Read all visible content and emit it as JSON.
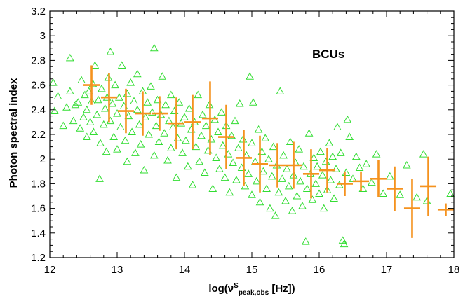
{
  "chart_data": {
    "type": "scatter",
    "xlabel_parts": {
      "prefix": "log(ν",
      "sup": "S",
      "sub": "peak,obs",
      "suffix": " [Hz])"
    },
    "ylabel": "Photon spectral index",
    "annotation": "BCUs",
    "xlim": [
      12,
      18
    ],
    "ylim": [
      1.2,
      3.2
    ],
    "x_ticks": [
      "12",
      "13",
      "14",
      "15",
      "16",
      "17",
      "18"
    ],
    "y_ticks": [
      "1.2",
      "1.4",
      "1.6",
      "1.8",
      "2",
      "2.2",
      "2.4",
      "2.6",
      "2.8",
      "3",
      "3.2"
    ],
    "grid": false,
    "colors": {
      "scatter": "#33dd33",
      "binned": "#f5921e",
      "axis": "#000000"
    },
    "series": [
      {
        "kind": "scatter-triangle",
        "points": [
          [
            12.05,
            2.62
          ],
          [
            12.07,
            2.39
          ],
          [
            12.12,
            2.51
          ],
          [
            12.2,
            2.27
          ],
          [
            12.25,
            2.42
          ],
          [
            12.3,
            2.82
          ],
          [
            12.3,
            2.55
          ],
          [
            12.35,
            2.31
          ],
          [
            12.38,
            2.44
          ],
          [
            12.42,
            2.46
          ],
          [
            12.45,
            2.25
          ],
          [
            12.47,
            2.64
          ],
          [
            12.5,
            2.34
          ],
          [
            12.52,
            2.52
          ],
          [
            12.55,
            2.4
          ],
          [
            12.55,
            2.18
          ],
          [
            12.58,
            2.55
          ],
          [
            12.6,
            2.3
          ],
          [
            12.62,
            2.47
          ],
          [
            12.64,
            2.61
          ],
          [
            12.65,
            2.22
          ],
          [
            12.67,
            2.76
          ],
          [
            12.7,
            2.36
          ],
          [
            12.72,
            2.48
          ],
          [
            12.74,
            1.84
          ],
          [
            12.75,
            2.13
          ],
          [
            12.77,
            2.57
          ],
          [
            12.8,
            2.28
          ],
          [
            12.82,
            2.41
          ],
          [
            12.84,
            2.06
          ],
          [
            12.85,
            2.5
          ],
          [
            12.87,
            2.66
          ],
          [
            12.9,
            2.87
          ],
          [
            12.9,
            2.31
          ],
          [
            12.93,
            2.45
          ],
          [
            12.95,
            2.18
          ],
          [
            12.97,
            2.6
          ],
          [
            13.0,
            2.37
          ],
          [
            13.0,
            2.08
          ],
          [
            13.03,
            2.5
          ],
          [
            13.05,
            2.26
          ],
          [
            13.07,
            2.76
          ],
          [
            13.1,
            2.43
          ],
          [
            13.12,
            2.15
          ],
          [
            13.15,
            2.53
          ],
          [
            13.15,
            1.98
          ],
          [
            13.17,
            2.35
          ],
          [
            13.2,
            2.62
          ],
          [
            13.22,
            2.22
          ],
          [
            13.25,
            2.47
          ],
          [
            13.27,
            2.05
          ],
          [
            13.3,
            2.4
          ],
          [
            13.3,
            2.69
          ],
          [
            13.33,
            2.28
          ],
          [
            13.35,
            2.12
          ],
          [
            13.38,
            2.55
          ],
          [
            13.4,
            1.91
          ],
          [
            13.42,
            2.34
          ],
          [
            13.45,
            2.46
          ],
          [
            13.47,
            2.2
          ],
          [
            13.5,
            2.59
          ],
          [
            13.52,
            2.38
          ],
          [
            13.55,
            2.9
          ],
          [
            13.55,
            2.03
          ],
          [
            13.58,
            2.27
          ],
          [
            13.6,
            2.48
          ],
          [
            13.62,
            2.14
          ],
          [
            13.65,
            2.36
          ],
          [
            13.67,
            2.67
          ],
          [
            13.7,
            2.21
          ],
          [
            13.72,
            2.44
          ],
          [
            13.75,
            1.99
          ],
          [
            13.77,
            2.31
          ],
          [
            13.8,
            2.52
          ],
          [
            13.8,
            2.09
          ],
          [
            13.83,
            2.26
          ],
          [
            13.85,
            2.39
          ],
          [
            13.88,
            1.85
          ],
          [
            13.9,
            2.17
          ],
          [
            13.92,
            2.46
          ],
          [
            13.95,
            2.29
          ],
          [
            13.97,
            2.05
          ],
          [
            14.0,
            2.34
          ],
          [
            14.02,
            2.15
          ],
          [
            14.05,
            1.94
          ],
          [
            14.07,
            2.41
          ],
          [
            14.1,
            2.24
          ],
          [
            14.12,
            1.79
          ],
          [
            14.15,
            2.3
          ],
          [
            14.17,
            2.1
          ],
          [
            14.2,
            2.52
          ],
          [
            14.22,
            1.98
          ],
          [
            14.25,
            2.19
          ],
          [
            14.27,
            2.36
          ],
          [
            14.3,
            1.89
          ],
          [
            14.32,
            2.27
          ],
          [
            14.35,
            2.07
          ],
          [
            14.37,
            2.44
          ],
          [
            14.4,
            2.16
          ],
          [
            14.42,
            1.76
          ],
          [
            14.45,
            2.32
          ],
          [
            14.47,
            2.01
          ],
          [
            14.5,
            2.22
          ],
          [
            14.52,
            1.92
          ],
          [
            14.55,
            2.38
          ],
          [
            14.57,
            2.11
          ],
          [
            14.6,
            1.85
          ],
          [
            14.62,
            2.27
          ],
          [
            14.65,
            2.04
          ],
          [
            14.67,
            1.73
          ],
          [
            14.7,
            2.19
          ],
          [
            14.72,
            1.97
          ],
          [
            14.75,
            2.31
          ],
          [
            14.77,
            1.83
          ],
          [
            14.8,
            2.09
          ],
          [
            14.82,
            2.45
          ],
          [
            14.85,
            1.93
          ],
          [
            14.87,
            2.16
          ],
          [
            14.9,
            1.78
          ],
          [
            14.92,
            2.03
          ],
          [
            14.95,
            1.88
          ],
          [
            14.97,
            2.67
          ],
          [
            15.0,
            2.13
          ],
          [
            15.0,
            1.71
          ],
          [
            15.02,
            2.46
          ],
          [
            15.05,
            1.98
          ],
          [
            15.07,
            1.82
          ],
          [
            15.1,
            2.24
          ],
          [
            15.12,
            1.65
          ],
          [
            15.15,
            2.06
          ],
          [
            15.17,
            1.9
          ],
          [
            15.2,
            2.17
          ],
          [
            15.22,
            1.76
          ],
          [
            15.25,
            2.0
          ],
          [
            15.27,
            1.6
          ],
          [
            15.3,
            1.86
          ],
          [
            15.32,
            2.1
          ],
          [
            15.35,
            1.54
          ],
          [
            15.37,
            1.95
          ],
          [
            15.4,
            1.73
          ],
          [
            15.42,
            2.55
          ],
          [
            15.45,
            1.84
          ],
          [
            15.47,
            2.03
          ],
          [
            15.5,
            1.66
          ],
          [
            15.52,
            1.92
          ],
          [
            15.55,
            1.78
          ],
          [
            15.57,
            2.14
          ],
          [
            15.6,
            1.58
          ],
          [
            15.62,
            1.87
          ],
          [
            15.65,
            1.97
          ],
          [
            15.67,
            1.7
          ],
          [
            15.7,
            2.08
          ],
          [
            15.72,
            1.82
          ],
          [
            15.75,
            1.62
          ],
          [
            15.77,
            1.94
          ],
          [
            15.8,
            1.33
          ],
          [
            15.82,
            1.76
          ],
          [
            15.85,
            2.21
          ],
          [
            15.87,
            1.88
          ],
          [
            15.9,
            1.67
          ],
          [
            15.92,
            2.01
          ],
          [
            15.95,
            1.8
          ],
          [
            15.97,
            1.94
          ],
          [
            16.0,
            1.72
          ],
          [
            16.02,
            2.06
          ],
          [
            16.05,
            1.87
          ],
          [
            16.07,
            1.6
          ],
          [
            16.1,
            1.98
          ],
          [
            16.12,
            1.75
          ],
          [
            16.15,
            2.13
          ],
          [
            16.17,
            1.83
          ],
          [
            16.2,
            2.02
          ],
          [
            16.22,
            1.68
          ],
          [
            16.25,
            1.92
          ],
          [
            16.27,
            2.26
          ],
          [
            16.3,
            1.79
          ],
          [
            16.32,
            2.05
          ],
          [
            16.35,
            1.34
          ],
          [
            16.37,
            1.31
          ],
          [
            16.4,
            1.89
          ],
          [
            16.42,
            2.32
          ],
          [
            16.45,
            2.18
          ],
          [
            16.5,
            1.84
          ],
          [
            16.55,
            2.02
          ],
          [
            16.6,
            1.93
          ],
          [
            16.65,
            1.76
          ],
          [
            16.7,
            1.96
          ],
          [
            16.78,
            1.81
          ],
          [
            16.85,
            2.04
          ],
          [
            16.95,
            1.72
          ],
          [
            17.05,
            1.86
          ],
          [
            17.2,
            1.71
          ],
          [
            17.3,
            1.95
          ],
          [
            17.45,
            1.69
          ],
          [
            17.55,
            2.04
          ],
          [
            17.6,
            1.66
          ],
          [
            17.95,
            1.72
          ]
        ]
      },
      {
        "kind": "binned-crosses",
        "points": [
          {
            "x": 12.62,
            "y": 2.6,
            "xerr": 0.12,
            "yerr": 0.16
          },
          {
            "x": 12.88,
            "y": 2.5,
            "xerr": 0.12,
            "yerr": 0.2
          },
          {
            "x": 13.13,
            "y": 2.39,
            "xerr": 0.12,
            "yerr": 0.18
          },
          {
            "x": 13.38,
            "y": 2.37,
            "xerr": 0.12,
            "yerr": 0.18
          },
          {
            "x": 13.63,
            "y": 2.37,
            "xerr": 0.12,
            "yerr": 0.14
          },
          {
            "x": 13.88,
            "y": 2.29,
            "xerr": 0.12,
            "yerr": 0.21
          },
          {
            "x": 14.12,
            "y": 2.3,
            "xerr": 0.12,
            "yerr": 0.22
          },
          {
            "x": 14.38,
            "y": 2.33,
            "xerr": 0.12,
            "yerr": 0.3
          },
          {
            "x": 14.62,
            "y": 2.18,
            "xerr": 0.12,
            "yerr": 0.26
          },
          {
            "x": 14.88,
            "y": 2.01,
            "xerr": 0.12,
            "yerr": 0.23
          },
          {
            "x": 15.12,
            "y": 1.96,
            "xerr": 0.12,
            "yerr": 0.23
          },
          {
            "x": 15.38,
            "y": 1.95,
            "xerr": 0.12,
            "yerr": 0.18
          },
          {
            "x": 15.62,
            "y": 1.95,
            "xerr": 0.12,
            "yerr": 0.19
          },
          {
            "x": 15.88,
            "y": 1.88,
            "xerr": 0.12,
            "yerr": 0.2
          },
          {
            "x": 16.12,
            "y": 1.91,
            "xerr": 0.12,
            "yerr": 0.18
          },
          {
            "x": 16.38,
            "y": 1.8,
            "xerr": 0.12,
            "yerr": 0.1
          },
          {
            "x": 16.62,
            "y": 1.82,
            "xerr": 0.12,
            "yerr": 0.08
          },
          {
            "x": 16.88,
            "y": 1.84,
            "xerr": 0.12,
            "yerr": 0.15
          },
          {
            "x": 17.12,
            "y": 1.76,
            "xerr": 0.12,
            "yerr": 0.18
          },
          {
            "x": 17.38,
            "y": 1.6,
            "xerr": 0.12,
            "yerr": 0.24
          },
          {
            "x": 17.62,
            "y": 1.78,
            "xerr": 0.12,
            "yerr": 0.24
          },
          {
            "x": 17.88,
            "y": 1.59,
            "xerr": 0.12,
            "yerr": 0.05
          }
        ]
      }
    ]
  }
}
